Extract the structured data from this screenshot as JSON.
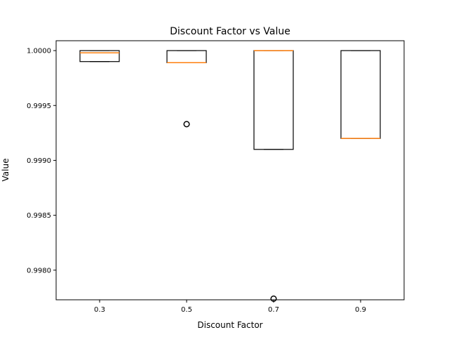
{
  "chart_data": {
    "type": "box",
    "title": "Discount Factor vs Value",
    "xlabel": "Discount Factor",
    "ylabel": "Value",
    "categories": [
      "0.3",
      "0.5",
      "0.7",
      "0.9"
    ],
    "ylim": [
      0.99773,
      1.00009
    ],
    "yticks": [
      0.998,
      0.9985,
      0.999,
      0.9995,
      1.0
    ],
    "ytick_labels": [
      "0.9980",
      "0.9985",
      "0.9990",
      "0.9995",
      "1.0000"
    ],
    "boxes": [
      {
        "category": "0.3",
        "min": 0.9999,
        "q1": 0.9999,
        "median": 0.99998,
        "q3": 1.0,
        "max": 1.0,
        "outliers": []
      },
      {
        "category": "0.5",
        "min": 0.99989,
        "q1": 0.99989,
        "median": 0.99989,
        "q3": 1.0,
        "max": 1.0,
        "outliers": [
          0.99933
        ]
      },
      {
        "category": "0.7",
        "min": 0.9991,
        "q1": 0.9991,
        "median": 1.0,
        "q3": 1.0,
        "max": 1.0,
        "outliers": [
          0.99774
        ]
      },
      {
        "category": "0.9",
        "min": 0.9992,
        "q1": 0.9992,
        "median": 0.9992,
        "q3": 1.0,
        "max": 1.0,
        "outliers": []
      }
    ],
    "colors": {
      "box": "#000000",
      "median": "#ff7f0e",
      "frame": "#000000"
    },
    "grid": false,
    "legend": "none"
  }
}
